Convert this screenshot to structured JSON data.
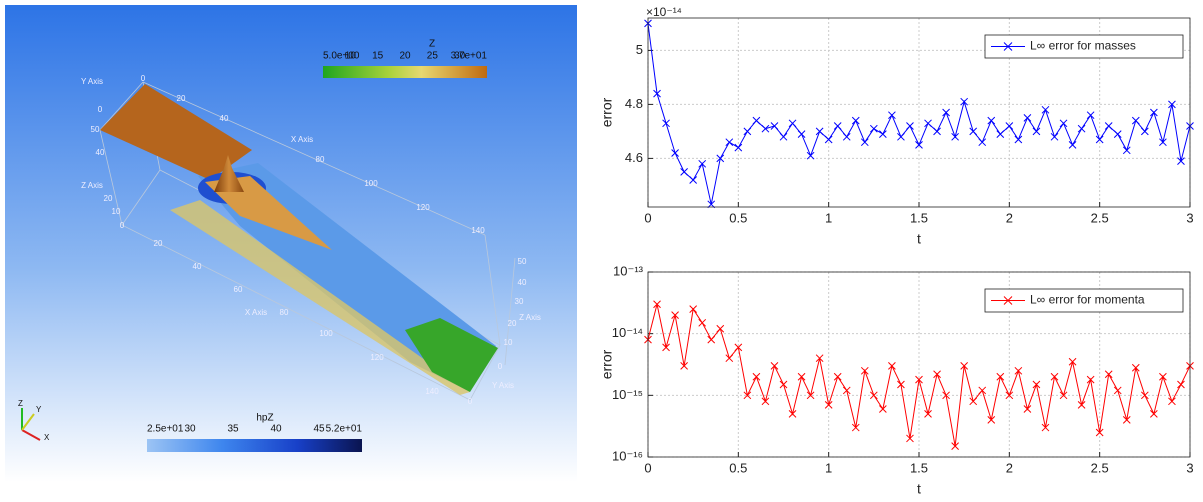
{
  "visualization": {
    "colorbars": [
      {
        "title": "Z",
        "labels": [
          "5.0e+00",
          "10",
          "15",
          "20",
          "25",
          "30",
          "3.7e+01"
        ]
      },
      {
        "title": "hpZ",
        "labels": [
          "2.5e+01",
          "30",
          "35",
          "40",
          "45",
          "5.2e+01"
        ]
      }
    ],
    "axis_labels": [
      "Y Axis",
      "0",
      "20",
      "40",
      "X Axis",
      "80",
      "100",
      "120",
      "140",
      "0",
      "50",
      "40",
      "Z Axis",
      "20",
      "10",
      "0",
      "20",
      "40",
      "60",
      "X Axis",
      "80",
      "100",
      "120",
      "140",
      "50",
      "40",
      "30",
      "20",
      "Z Axis",
      "10",
      "0",
      "Y Axis",
      "0"
    ],
    "orientation": [
      "Z",
      "Y",
      "X"
    ]
  },
  "chart_data": [
    {
      "type": "line",
      "x": [
        0,
        0.05,
        0.1,
        0.15,
        0.2,
        0.25,
        0.3,
        0.35,
        0.4,
        0.45,
        0.5,
        0.55,
        0.6,
        0.65,
        0.7,
        0.75,
        0.8,
        0.85,
        0.9,
        0.95,
        1,
        1.05,
        1.1,
        1.15,
        1.2,
        1.25,
        1.3,
        1.35,
        1.4,
        1.45,
        1.5,
        1.55,
        1.6,
        1.65,
        1.7,
        1.75,
        1.8,
        1.85,
        1.9,
        1.95,
        2,
        2.05,
        2.1,
        2.15,
        2.2,
        2.25,
        2.3,
        2.35,
        2.4,
        2.45,
        2.5,
        2.55,
        2.6,
        2.65,
        2.7,
        2.75,
        2.8,
        2.85,
        2.9,
        2.95,
        3
      ],
      "series": [
        {
          "name": "L∞ error for masses",
          "color": "#0000ff",
          "marker": "x",
          "values": [
            5.1,
            4.84,
            4.73,
            4.62,
            4.55,
            4.52,
            4.58,
            4.43,
            4.6,
            4.66,
            4.64,
            4.7,
            4.74,
            4.71,
            4.72,
            4.68,
            4.73,
            4.69,
            4.61,
            4.7,
            4.67,
            4.72,
            4.68,
            4.74,
            4.66,
            4.71,
            4.69,
            4.76,
            4.68,
            4.72,
            4.65,
            4.73,
            4.7,
            4.77,
            4.68,
            4.81,
            4.7,
            4.66,
            4.74,
            4.69,
            4.72,
            4.67,
            4.75,
            4.7,
            4.78,
            4.68,
            4.73,
            4.65,
            4.71,
            4.76,
            4.67,
            4.72,
            4.69,
            4.63,
            4.74,
            4.7,
            4.77,
            4.66,
            4.8,
            4.59,
            4.72
          ]
        }
      ],
      "xlabel": "t",
      "ylabel": "error",
      "y_multiplier": "×10⁻¹⁴",
      "xlim": [
        0,
        3
      ],
      "ylim": [
        4.42,
        5.12
      ],
      "xticks": [
        0,
        0.5,
        1,
        1.5,
        2,
        2.5,
        3
      ],
      "yticks": [
        4.6,
        4.8,
        5
      ],
      "grid": true,
      "legend": "upper right"
    },
    {
      "type": "line",
      "x": [
        0,
        0.05,
        0.1,
        0.15,
        0.2,
        0.25,
        0.3,
        0.35,
        0.4,
        0.45,
        0.5,
        0.55,
        0.6,
        0.65,
        0.7,
        0.75,
        0.8,
        0.85,
        0.9,
        0.95,
        1,
        1.05,
        1.1,
        1.15,
        1.2,
        1.25,
        1.3,
        1.35,
        1.4,
        1.45,
        1.5,
        1.55,
        1.6,
        1.65,
        1.7,
        1.75,
        1.8,
        1.85,
        1.9,
        1.95,
        2,
        2.05,
        2.1,
        2.15,
        2.2,
        2.25,
        2.3,
        2.35,
        2.4,
        2.45,
        2.5,
        2.55,
        2.6,
        2.65,
        2.7,
        2.75,
        2.8,
        2.85,
        2.9,
        2.95,
        3
      ],
      "series": [
        {
          "name": "L∞ error for momenta",
          "color": "#ff0000",
          "marker": "x",
          "values": [
            8e-15,
            3e-14,
            6e-15,
            2e-14,
            3e-15,
            2.5e-14,
            1.5e-14,
            8e-15,
            1.2e-14,
            4e-15,
            6e-15,
            1e-15,
            2e-15,
            8e-16,
            3e-15,
            1.5e-15,
            5e-16,
            2e-15,
            1e-15,
            4e-15,
            7e-16,
            2e-15,
            1.2e-15,
            3e-16,
            2.5e-15,
            1e-15,
            6e-16,
            3e-15,
            1.5e-15,
            2e-16,
            1.8e-15,
            5e-16,
            2.2e-15,
            1e-15,
            1.5e-16,
            3e-15,
            8e-16,
            1.2e-15,
            4e-16,
            2e-15,
            1e-15,
            2.5e-15,
            6e-16,
            1.5e-15,
            3e-16,
            2e-15,
            1e-15,
            3.5e-15,
            7e-16,
            1.8e-15,
            2.5e-16,
            2.2e-15,
            1.2e-15,
            4e-16,
            2.8e-15,
            1e-15,
            5e-16,
            2e-15,
            8e-16,
            1.5e-15,
            3e-15
          ]
        }
      ],
      "xlabel": "t",
      "ylabel": "error",
      "yscale": "log",
      "xlim": [
        0,
        3
      ],
      "ylim": [
        1e-16,
        1e-13
      ],
      "xticks": [
        0,
        0.5,
        1,
        1.5,
        2,
        2.5,
        3
      ],
      "yticks": [
        {
          "value": 1e-16,
          "label": "10⁻¹⁶"
        },
        {
          "value": 1e-15,
          "label": "10⁻¹⁵"
        },
        {
          "value": 1e-14,
          "label": "10⁻¹⁴"
        },
        {
          "value": 1e-13,
          "label": "10⁻¹³"
        }
      ],
      "grid": true,
      "legend": "upper right"
    }
  ]
}
